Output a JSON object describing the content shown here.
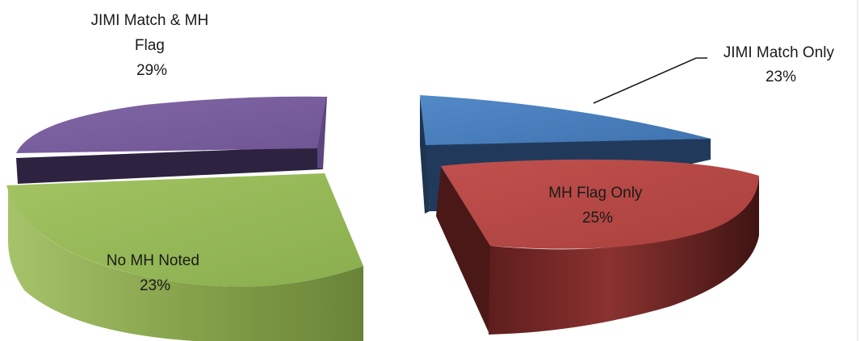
{
  "chart_data": {
    "type": "pie",
    "style": "3d-exploded",
    "title": "",
    "slices": [
      {
        "label_lines": [
          "JIMI Match Only"
        ],
        "percent_label": "23%",
        "value": 23,
        "color": "#4a7ebb",
        "exploded": true
      },
      {
        "label_lines": [
          "MH Flag Only"
        ],
        "percent_label": "25%",
        "value": 25,
        "color": "#b84a47",
        "exploded": true
      },
      {
        "label_lines": [
          "No MH Noted"
        ],
        "percent_label": "23%",
        "value": 23,
        "color": "#95b558",
        "exploded": true
      },
      {
        "label_lines": [
          "JIMI Match & MH",
          "Flag"
        ],
        "percent_label": "29%",
        "value": 29,
        "color": "#7d60a0",
        "exploded": true
      }
    ],
    "legend": "none",
    "grid": false
  }
}
